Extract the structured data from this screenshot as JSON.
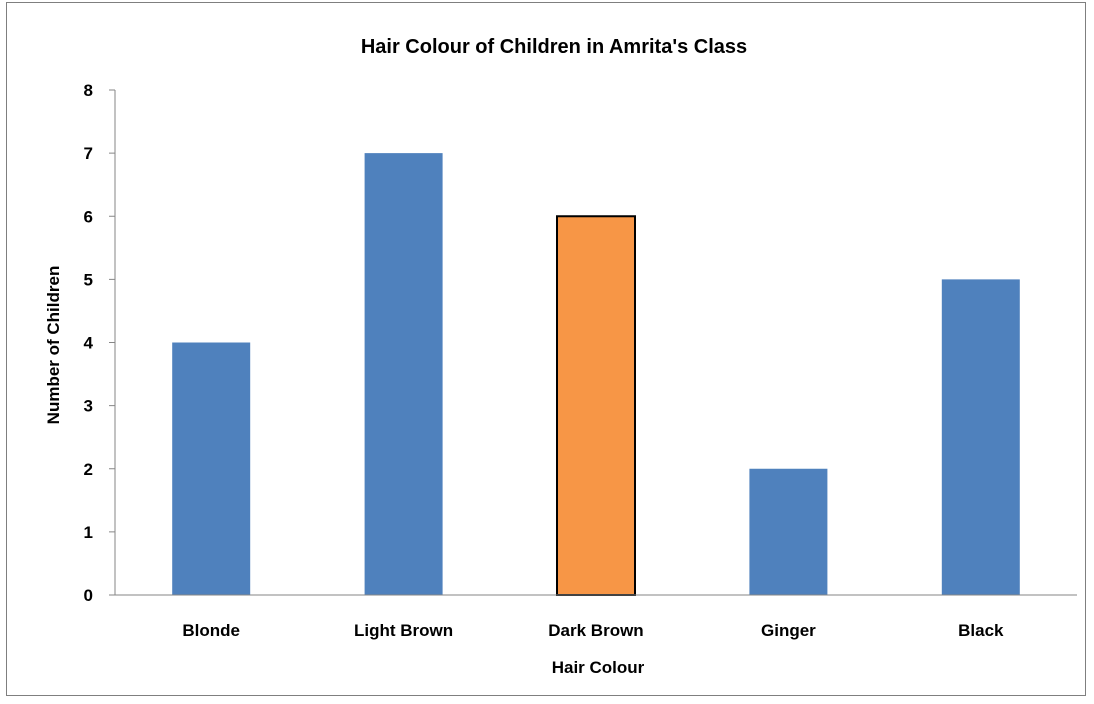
{
  "chart_data": {
    "type": "bar",
    "title": "Hair Colour of Children in Amrita's Class",
    "xlabel": "Hair Colour",
    "ylabel": "Number of Children",
    "categories": [
      "Blonde",
      "Light Brown",
      "Dark Brown",
      "Ginger",
      "Black"
    ],
    "values": [
      4,
      7,
      6,
      2,
      5
    ],
    "ylim": [
      0,
      8
    ],
    "yticks": [
      "0",
      "1",
      "2",
      "3",
      "4",
      "5",
      "6",
      "7",
      "8"
    ],
    "grid": false,
    "legend": "none",
    "colors": {
      "bar": "#4f81bd",
      "highlight": "#f79646",
      "highlight_border": "#000000",
      "axis": "#868686"
    },
    "highlight_category": "Dark Brown"
  }
}
